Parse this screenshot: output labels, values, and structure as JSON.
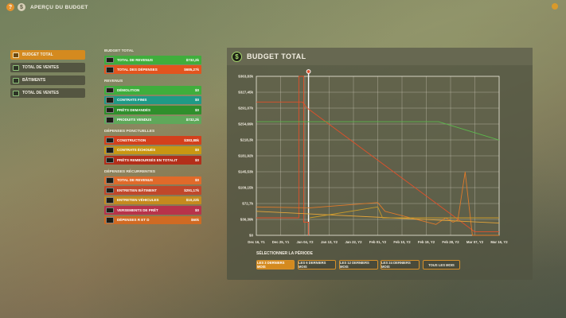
{
  "header": {
    "help_icon": "?",
    "budget_icon": "$",
    "title": "APERÇU DU BUDGET"
  },
  "nav": [
    {
      "label": "BUDGET TOTAL",
      "icon": "coins-icon",
      "active": true
    },
    {
      "label": "TOTAL DE VENTES",
      "icon": "truck-icon",
      "active": false
    },
    {
      "label": "BÂTIMENTS",
      "icon": "building-icon",
      "active": false
    },
    {
      "label": "TOTAL DE VENTES",
      "icon": "cash-icon",
      "active": false
    }
  ],
  "sections": [
    {
      "title": "BUDGET TOTAL",
      "rows": [
        {
          "label": "TOTAL DE REVENUS",
          "value": "$732,2k",
          "color": "#3fae3c",
          "icon": "money-stack-icon"
        },
        {
          "label": "TOTAL DES DÉPENSES",
          "value": "$685,27k",
          "color": "#e2541e",
          "icon": "wallet-icon"
        }
      ]
    },
    {
      "title": "REVENUS",
      "rows": [
        {
          "label": "DÉMOLITION",
          "value": "$0",
          "color": "#3fae3c",
          "icon": "demolition-icon"
        },
        {
          "label": "CONTRATS FINIS",
          "value": "$0",
          "color": "#1f9a86",
          "icon": "contract-icon"
        },
        {
          "label": "PRÊTS DEMANDÉS",
          "value": "$0",
          "color": "#2f8f2c",
          "icon": "loan-icon"
        },
        {
          "label": "PRODUITS VENDUS",
          "value": "$732,2k",
          "color": "#5fa85a",
          "icon": "product-icon"
        }
      ]
    },
    {
      "title": "DÉPENSES PONCTUELLES",
      "rows": [
        {
          "label": "CONSTRUCTION",
          "value": "$383,88k",
          "color": "#d3401c",
          "icon": "construction-icon"
        },
        {
          "label": "CONTRATS ÉCHOUÉS",
          "value": "$0",
          "color": "#c99712",
          "icon": "failed-contract-icon"
        },
        {
          "label": "PRÊTS REMBOURSÉS EN TOTALIT",
          "value": "$0",
          "color": "#b32f1a",
          "icon": "repaid-loan-icon"
        }
      ]
    },
    {
      "title": "DÉPENSES RÉCURRENTES",
      "rows": [
        {
          "label": "TOTAL DE REVENUS",
          "value": "$0",
          "color": "#e06a2a",
          "icon": "revenue-icon"
        },
        {
          "label": "ENTRETIEN BÂTIMENT",
          "value": "$291,17k",
          "color": "#c0472a",
          "icon": "building-maintenance-icon"
        },
        {
          "label": "ENTRETIEN VÉHICULES",
          "value": "$10,22k",
          "color": "#c58a1e",
          "icon": "vehicle-maintenance-icon"
        },
        {
          "label": "VERSEMENTS DE PRÊT",
          "value": "$0",
          "color": "#b8334a",
          "icon": "loan-payment-icon"
        },
        {
          "label": "DÉPENSES R ET D",
          "value": "$60k",
          "color": "#d06a23",
          "icon": "research-icon"
        }
      ]
    }
  ],
  "panel": {
    "title": "BUDGET TOTAL",
    "icon": "dollar-icon"
  },
  "chart_data": {
    "type": "line",
    "title": "",
    "x": [
      "Dec 16, Y1",
      "Dec 25, Y1",
      "Jan 04, Y2",
      "Jan 13, Y2",
      "Jan 22, Y2",
      "Feb 01, Y2",
      "Feb 10, Y2",
      "Feb 19, Y2",
      "Feb 28, Y2",
      "Mar 07, Y2",
      "Mar 16, Y2"
    ],
    "y_ticks": [
      "$0",
      "$36,39k",
      "$72,7k",
      "$109,15k",
      "$145,53k",
      "$181,92k",
      "$218,3k",
      "$254,69k",
      "$291,07k",
      "$327,45k",
      "$363,83k"
    ],
    "ylim": [
      0,
      363.83
    ],
    "yunit": "$k",
    "grid": true,
    "highlight_x": 2.15,
    "series": [
      {
        "color": "#e0502a",
        "x": [
          0,
          1.9,
          2.1,
          9.0,
          10
        ],
        "values": [
          305,
          305,
          291,
          8,
          8
        ]
      },
      {
        "color": "#e0502a",
        "x": [
          0,
          1.75,
          1.75,
          1.95,
          1.95,
          2.15,
          2.15
        ],
        "values": [
          40,
          40,
          363.83,
          363.83,
          30,
          30,
          0
        ]
      },
      {
        "color": "#e07a2a",
        "x": [
          0,
          2.2,
          5.0,
          5.3,
          7.4,
          7.8,
          8.1,
          8.3,
          8.6,
          8.9,
          10
        ],
        "values": [
          65,
          63,
          75,
          55,
          25,
          40,
          30,
          35,
          145,
          0,
          0
        ]
      },
      {
        "color": "#5cb84c",
        "x": [
          0,
          7.5,
          10
        ],
        "values": [
          260,
          260,
          218
        ]
      },
      {
        "color": "#e6a63a",
        "x": [
          0,
          10
        ],
        "values": [
          55,
          28
        ]
      },
      {
        "color": "#c89a2a",
        "x": [
          2.2,
          5.0,
          5.2,
          10
        ],
        "values": [
          40,
          65,
          40,
          40
        ]
      }
    ]
  },
  "period": {
    "title": "SÉLECTIONNER LA PÉRIODE",
    "buttons": [
      {
        "label": "LES 3 DERNIERS MOIS",
        "active": true
      },
      {
        "label": "LES 6 DERNIERS MOIS",
        "active": false
      },
      {
        "label": "LES 12 DERNIERS MOIS",
        "active": false
      },
      {
        "label": "LES 24 DERNIERS MOIS",
        "active": false
      },
      {
        "label": "TOUS LES MOIS",
        "active": false
      }
    ]
  }
}
